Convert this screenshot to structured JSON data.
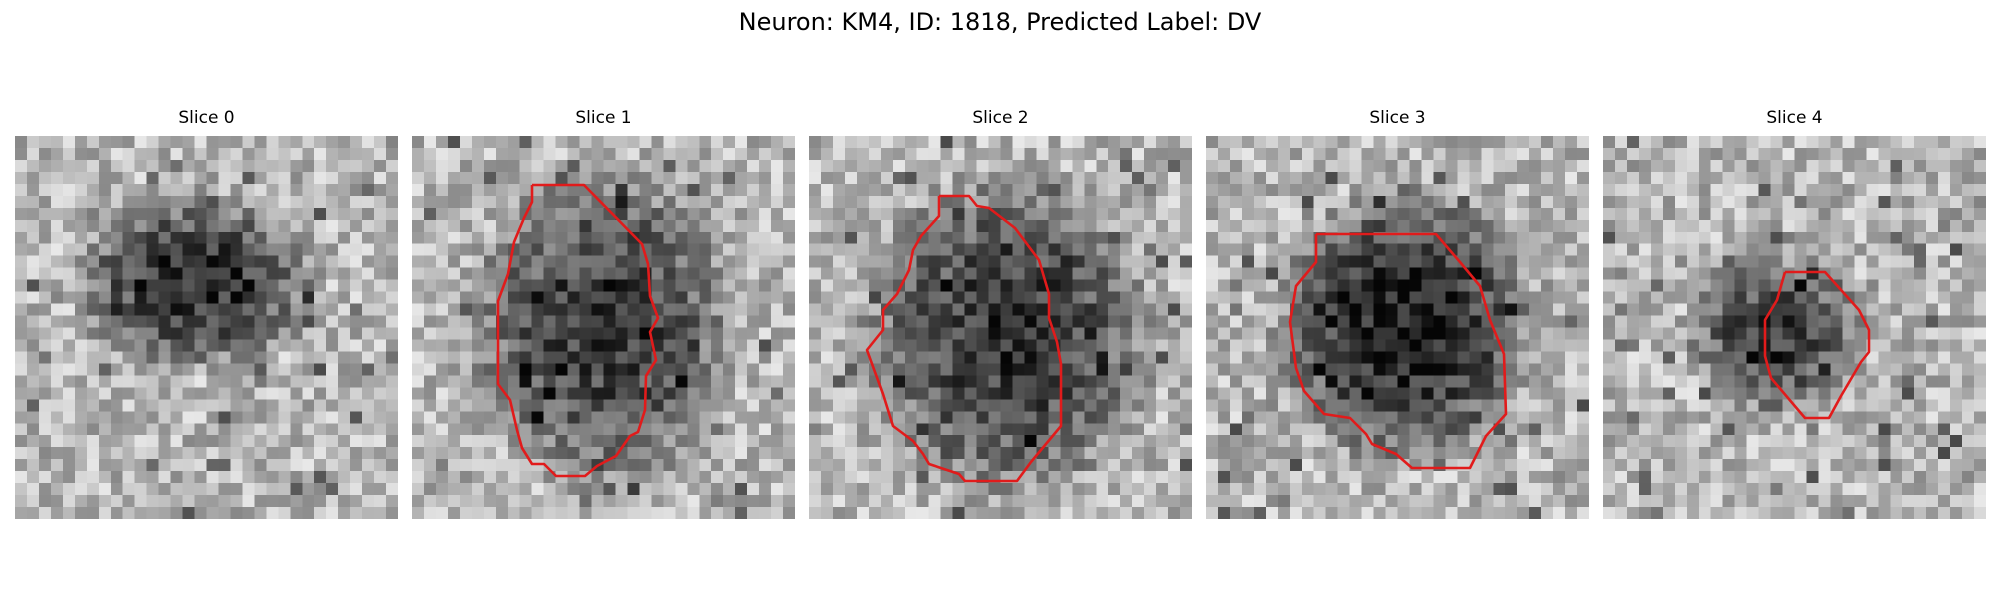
{
  "figure": {
    "title": "Neuron: KM4, ID: 1818, Predicted Label: DV"
  },
  "colors": {
    "contour": "#e11b1b",
    "background": "#ffffff"
  },
  "panels": [
    {
      "title": "Slice 0",
      "has_contour": false
    },
    {
      "title": "Slice 1",
      "has_contour": true
    },
    {
      "title": "Slice 2",
      "has_contour": true
    },
    {
      "title": "Slice 3",
      "has_contour": true
    },
    {
      "title": "Slice 4",
      "has_contour": true
    }
  ]
}
